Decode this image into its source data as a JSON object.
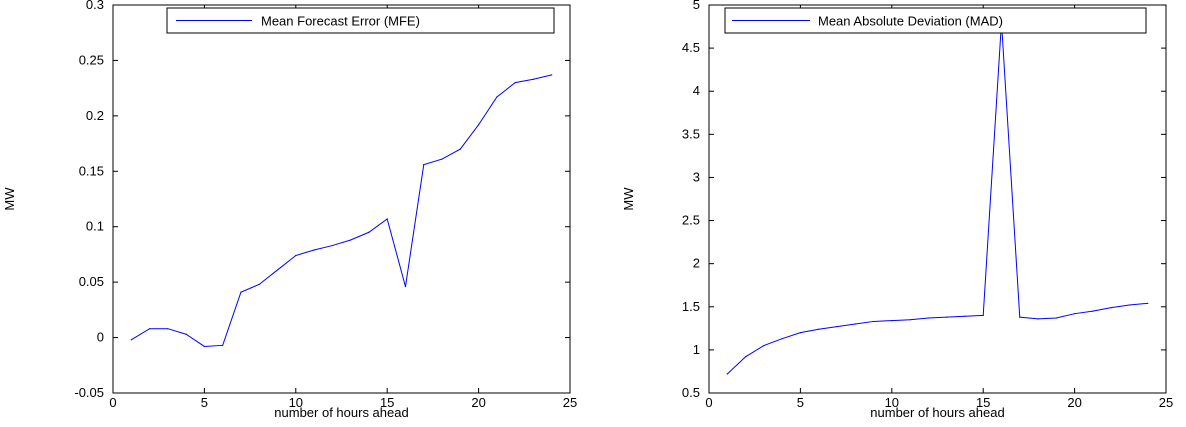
{
  "chart_data": [
    {
      "type": "line",
      "xlabel": "number of hours ahead",
      "ylabel": "MW",
      "xlim": [
        0,
        25
      ],
      "ylim": [
        -0.05,
        0.3
      ],
      "x_ticks": [
        0,
        5,
        10,
        15,
        20,
        25
      ],
      "x_tick_labels": [
        "0",
        "5",
        "10",
        "15",
        "20",
        "25"
      ],
      "y_ticks": [
        -0.05,
        0,
        0.05,
        0.1,
        0.15,
        0.2,
        0.25,
        0.3
      ],
      "y_tick_labels": [
        "-0.05",
        "0",
        "0.05",
        "0.1",
        "0.15",
        "0.2",
        "0.25",
        "0.3"
      ],
      "grid": false,
      "legend_position": "top-right",
      "series": [
        {
          "name": "Mean Forecast Error (MFE)",
          "color": "#0000ff",
          "x": [
            1,
            2,
            3,
            4,
            5,
            6,
            7,
            8,
            9,
            10,
            11,
            12,
            13,
            14,
            15,
            16,
            17,
            18,
            19,
            20,
            21,
            22,
            23,
            24
          ],
          "values": [
            -0.002,
            0.008,
            0.008,
            0.003,
            -0.008,
            -0.007,
            0.041,
            0.048,
            0.061,
            0.074,
            0.079,
            0.083,
            0.088,
            0.095,
            0.107,
            0.046,
            0.156,
            0.161,
            0.17,
            0.192,
            0.217,
            0.23,
            0.233,
            0.237
          ]
        }
      ]
    },
    {
      "type": "line",
      "xlabel": "number of hours ahead",
      "ylabel": "MW",
      "xlim": [
        0,
        25
      ],
      "ylim": [
        0.5,
        5
      ],
      "x_ticks": [
        0,
        5,
        10,
        15,
        20,
        25
      ],
      "x_tick_labels": [
        "0",
        "5",
        "10",
        "15",
        "20",
        "25"
      ],
      "y_ticks": [
        0.5,
        1,
        1.5,
        2,
        2.5,
        3,
        3.5,
        4,
        4.5,
        5
      ],
      "y_tick_labels": [
        "0.5",
        "1",
        "1.5",
        "2",
        "2.5",
        "3",
        "3.5",
        "4",
        "4.5",
        "5"
      ],
      "grid": false,
      "legend_position": "top-right",
      "series": [
        {
          "name": "Mean Absolute Deviation (MAD)",
          "color": "#0000ff",
          "x": [
            1,
            2,
            3,
            4,
            5,
            6,
            7,
            8,
            9,
            10,
            11,
            12,
            13,
            14,
            15,
            16,
            17,
            18,
            19,
            20,
            21,
            22,
            23,
            24
          ],
          "values": [
            0.72,
            0.92,
            1.05,
            1.13,
            1.2,
            1.24,
            1.27,
            1.3,
            1.33,
            1.34,
            1.35,
            1.37,
            1.38,
            1.39,
            1.4,
            4.8,
            1.38,
            1.36,
            1.37,
            1.42,
            1.45,
            1.49,
            1.52,
            1.54
          ]
        }
      ]
    }
  ]
}
